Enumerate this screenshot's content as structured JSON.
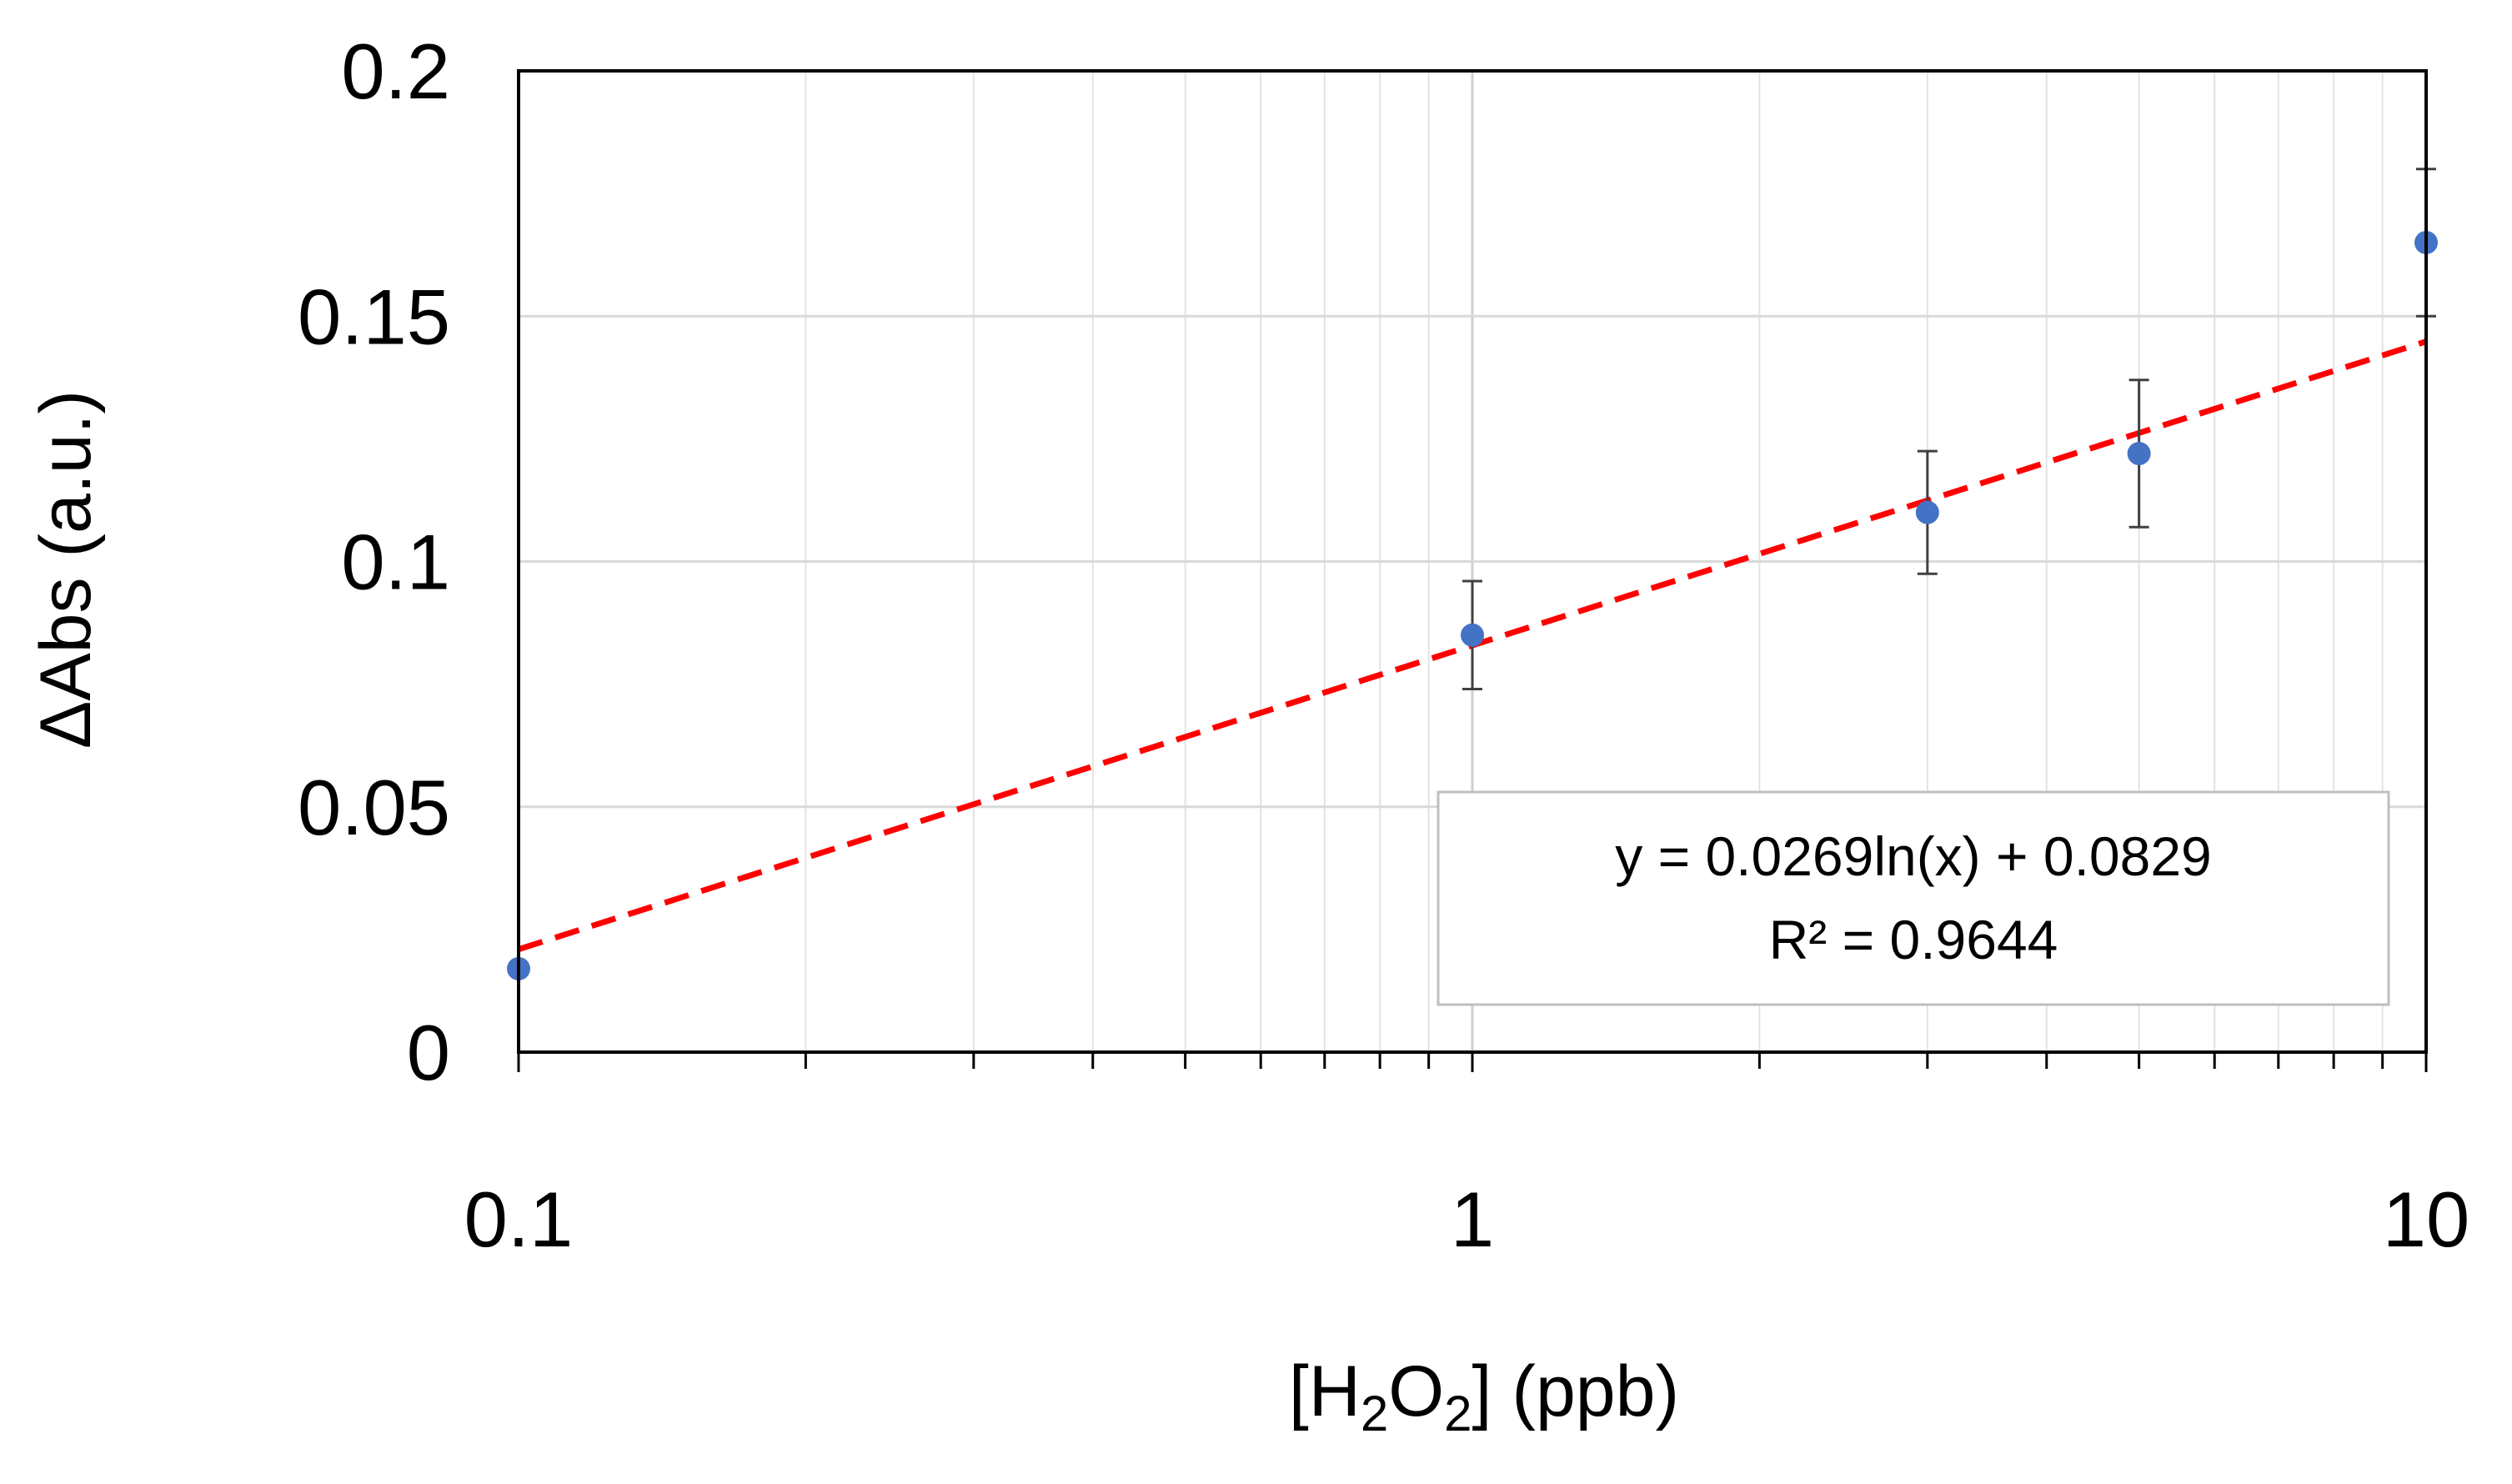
{
  "chart_data": {
    "type": "scatter",
    "title": "",
    "xlabel": {
      "prefix": "[H",
      "sub1": "2",
      "mid": "O",
      "sub2": "2",
      "suffix": "]  (ppb)"
    },
    "ylabel": "ΔAbs (a.u.)",
    "xscale": "log",
    "xlim": [
      0.1,
      10
    ],
    "ylim": [
      0,
      0.2
    ],
    "x_ticks": [
      0.1,
      1,
      10
    ],
    "x_tick_labels": [
      "0.1",
      "1",
      "10"
    ],
    "y_ticks": [
      0,
      0.05,
      0.1,
      0.15,
      0.2
    ],
    "y_tick_labels": [
      "0",
      "0.05",
      "0.1",
      "0.15",
      "0.2"
    ],
    "grid": true,
    "series": [
      {
        "name": "ΔAbs",
        "color": "#4472c4",
        "x": [
          0.1,
          1,
          3,
          5,
          10
        ],
        "y": [
          0.017,
          0.085,
          0.11,
          0.122,
          0.165
        ],
        "yerr": [
          0,
          0.011,
          0.0125,
          0.015,
          0.015
        ]
      }
    ],
    "trendline": {
      "type": "logarithmic",
      "slope": 0.0269,
      "intercept": 0.0829,
      "color": "#ff0000",
      "style": "dashed",
      "equation": "y = 0.0269ln(x) + 0.0829",
      "r_squared": "R² = 0.9644"
    }
  }
}
